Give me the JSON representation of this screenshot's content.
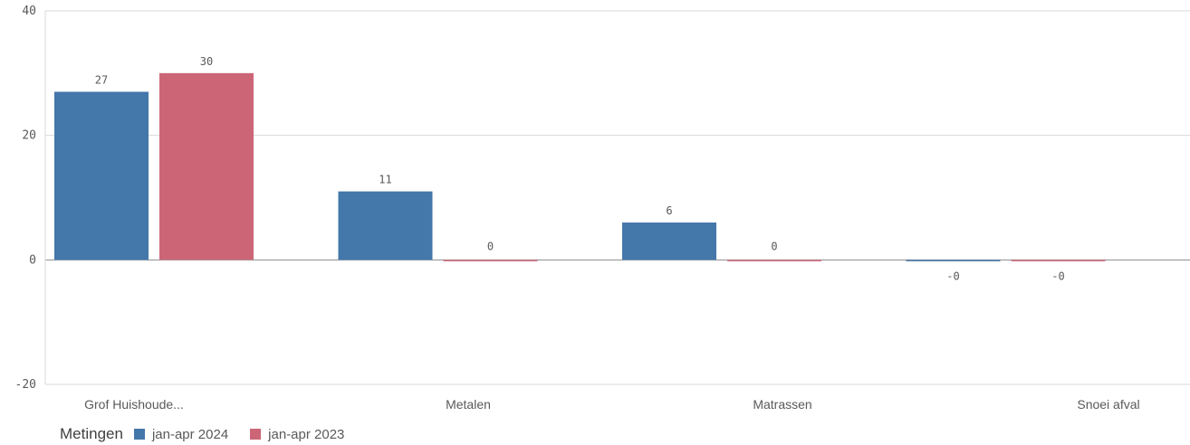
{
  "chart_data": {
    "type": "bar",
    "categories": [
      "Grof Huishoude...",
      "Metalen",
      "Matrassen",
      "Snoei afval"
    ],
    "series": [
      {
        "name": "jan-apr 2024",
        "values": [
          27,
          11,
          6,
          -0.2
        ],
        "labels": [
          "27",
          "11",
          "6",
          "-0"
        ],
        "color": "#4477aa"
      },
      {
        "name": "jan-apr 2023",
        "values": [
          30,
          0,
          0,
          -0.2
        ],
        "labels": [
          "30",
          "0",
          "0",
          "-0"
        ],
        "color": "#cc6677"
      }
    ],
    "ylim": [
      -20,
      40
    ],
    "yticks": [
      {
        "value": 40,
        "label": "40"
      },
      {
        "value": 20,
        "label": "20"
      },
      {
        "value": 0,
        "label": "0"
      },
      {
        "value": -20,
        "label": "-20"
      }
    ],
    "grid": true,
    "legend": {
      "title": "Metingen",
      "placement": "bottom-left"
    }
  }
}
